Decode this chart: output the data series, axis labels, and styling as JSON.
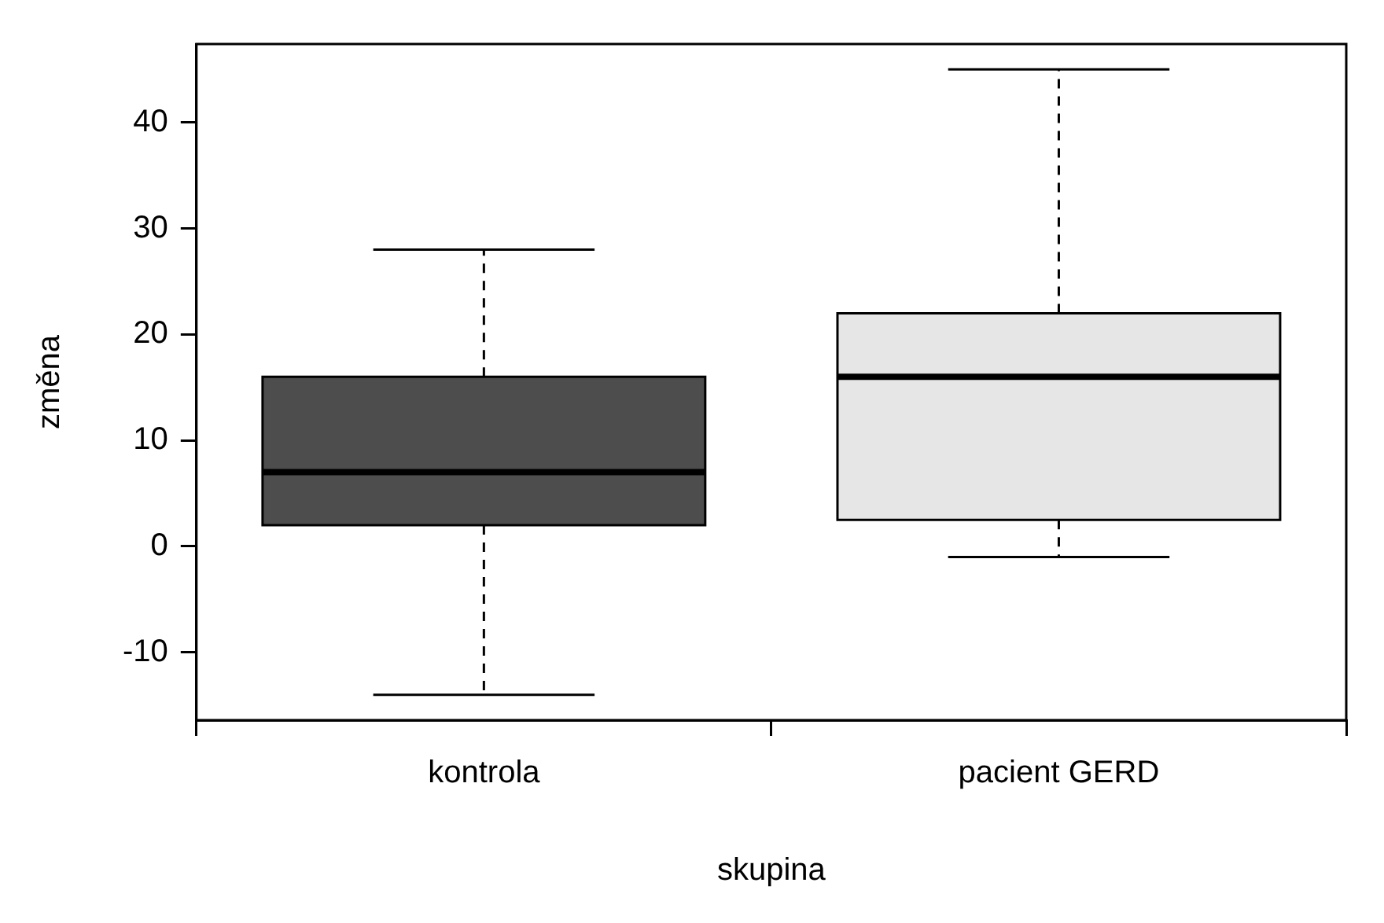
{
  "chart_data": {
    "type": "box",
    "xlabel": "skupina",
    "ylabel": "změna",
    "categories": [
      "kontrola",
      "pacient GERD"
    ],
    "boxes": [
      {
        "low": -14,
        "q1": 2,
        "median": 7,
        "q3": 16,
        "high": 28
      },
      {
        "low": -1,
        "q1": 2.5,
        "median": 16,
        "q3": 22,
        "high": 45
      }
    ],
    "colors": [
      "#4d4d4d",
      "#e6e6e6"
    ],
    "ylim": [
      -16.4,
      47.4
    ],
    "yticks": [
      -10,
      0,
      10,
      20,
      30,
      40
    ],
    "grid": false,
    "legend": false
  }
}
